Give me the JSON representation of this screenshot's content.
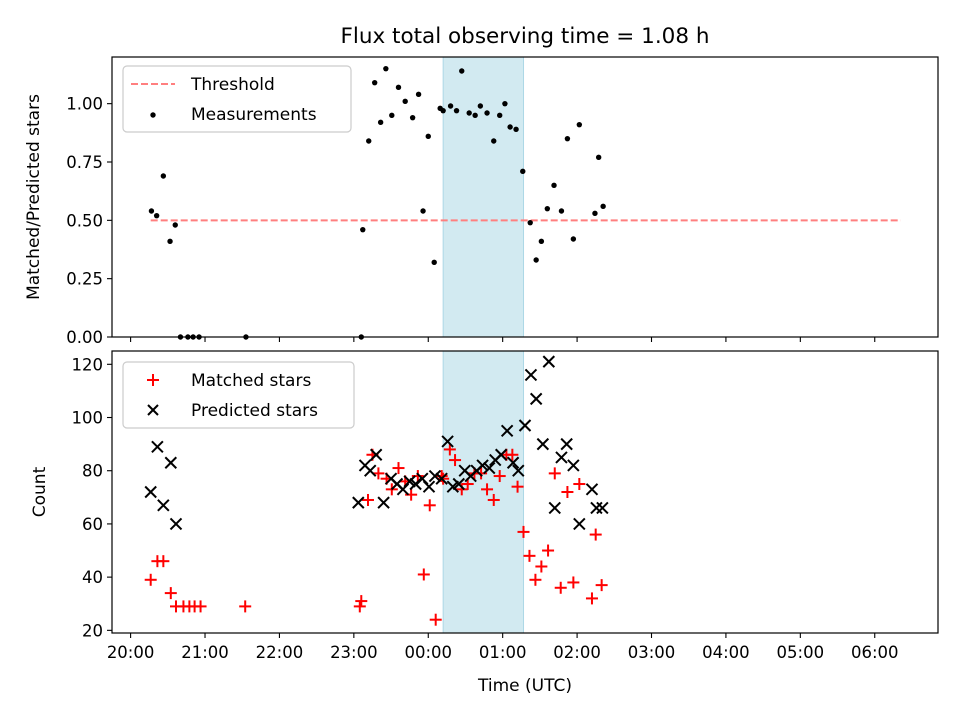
{
  "chart_data": [
    {
      "type": "scatter",
      "title": "Flux total observing time = 1.08 h",
      "xlabel": "",
      "ylabel": "Matched/Predicted stars",
      "ylim": [
        0,
        1.2
      ],
      "yticks": [
        0.0,
        0.25,
        0.5,
        0.75,
        1.0
      ],
      "ytick_labels": [
        "0.00",
        "0.25",
        "0.50",
        "0.75",
        "1.00"
      ],
      "x_unit": "hours after 20:00 UTC (axis spans 20:00 to 06:00)",
      "xlim": [
        -0.25,
        10.85
      ],
      "highlight_span": [
        4.2,
        5.28
      ],
      "highlight_color": "#add8e6",
      "legend_position": "upper left",
      "threshold": {
        "name": "Threshold",
        "value": 0.5,
        "x_range": [
          0.27,
          10.35
        ],
        "color": "#ff7f7f"
      },
      "series": [
        {
          "name": "Measurements",
          "color": "#000000",
          "marker": "dot",
          "x": [
            0.28,
            0.35,
            0.44,
            0.53,
            0.6,
            0.67,
            0.77,
            0.84,
            0.92,
            1.55,
            3.1,
            3.12,
            3.2,
            3.28,
            3.36,
            3.43,
            3.51,
            3.6,
            3.69,
            3.79,
            3.87,
            3.93,
            4.0,
            4.08,
            4.16,
            4.2,
            4.3,
            4.38,
            4.45,
            4.55,
            4.63,
            4.7,
            4.79,
            4.88,
            4.96,
            5.03,
            5.1,
            5.18,
            5.27,
            5.37,
            5.45,
            5.52,
            5.6,
            5.69,
            5.79,
            5.87,
            5.95,
            6.03,
            6.24,
            6.29,
            6.35
          ],
          "y": [
            0.54,
            0.52,
            0.69,
            0.41,
            0.48,
            0.0,
            0.0,
            0.0,
            0.0,
            0.0,
            0.0,
            0.46,
            0.84,
            1.09,
            0.92,
            1.15,
            0.95,
            1.07,
            1.01,
            0.94,
            1.04,
            0.54,
            0.86,
            0.32,
            0.98,
            0.97,
            0.99,
            0.97,
            1.14,
            0.96,
            0.95,
            0.99,
            0.96,
            0.84,
            0.95,
            1.0,
            0.9,
            0.89,
            0.71,
            0.49,
            0.33,
            0.41,
            0.55,
            0.65,
            0.54,
            0.85,
            0.42,
            0.91,
            0.53,
            0.77,
            0.56
          ]
        }
      ]
    },
    {
      "type": "scatter",
      "title": "",
      "xlabel": "Time (UTC)",
      "ylabel": "Count",
      "ylim": [
        19,
        125
      ],
      "yticks": [
        20,
        40,
        60,
        80,
        100,
        120
      ],
      "ytick_labels": [
        "20",
        "40",
        "60",
        "80",
        "100",
        "120"
      ],
      "xticks": [
        0,
        1,
        2,
        3,
        4,
        5,
        6,
        7,
        8,
        9,
        10
      ],
      "xtick_labels": [
        "20:00",
        "21:00",
        "22:00",
        "23:00",
        "00:00",
        "01:00",
        "02:00",
        "03:00",
        "04:00",
        "05:00",
        "06:00"
      ],
      "xlim": [
        -0.25,
        10.85
      ],
      "highlight_span": [
        4.2,
        5.28
      ],
      "highlight_color": "#add8e6",
      "legend_position": "upper left",
      "series": [
        {
          "name": "Matched stars",
          "color": "#ff0000",
          "marker": "plus",
          "x": [
            0.27,
            0.36,
            0.44,
            0.54,
            0.61,
            0.71,
            0.79,
            0.86,
            0.94,
            1.54,
            3.08,
            3.1,
            3.19,
            3.25,
            3.33,
            3.44,
            3.51,
            3.6,
            3.69,
            3.77,
            3.86,
            3.94,
            4.02,
            4.1,
            4.18,
            4.2,
            4.29,
            4.36,
            4.45,
            4.53,
            4.62,
            4.71,
            4.79,
            4.88,
            4.96,
            5.05,
            5.13,
            5.2,
            5.28,
            5.36,
            5.44,
            5.52,
            5.61,
            5.7,
            5.78,
            5.87,
            5.95,
            6.03,
            6.2,
            6.25,
            6.33
          ],
          "y": [
            39,
            46,
            46,
            34,
            29,
            29,
            29,
            29,
            29,
            29,
            29,
            31,
            69,
            86,
            79,
            77,
            73,
            81,
            76,
            71,
            78,
            41,
            67,
            24,
            78,
            77,
            88,
            84,
            73,
            75,
            79,
            79,
            73,
            69,
            78,
            86,
            86,
            74,
            57,
            48,
            39,
            44,
            50,
            79,
            36,
            72,
            38,
            75,
            32,
            56,
            37
          ]
        },
        {
          "name": "Predicted stars",
          "color": "#000000",
          "marker": "x",
          "x": [
            0.27,
            0.36,
            0.44,
            0.54,
            0.61,
            3.06,
            3.15,
            3.22,
            3.3,
            3.4,
            3.5,
            3.58,
            3.66,
            3.75,
            3.83,
            3.92,
            4.01,
            4.09,
            4.18,
            4.26,
            4.33,
            4.41,
            4.49,
            4.57,
            4.65,
            4.73,
            4.82,
            4.9,
            4.98,
            5.06,
            5.14,
            5.21,
            5.3,
            5.38,
            5.45,
            5.54,
            5.62,
            5.7,
            5.79,
            5.86,
            5.95,
            6.03,
            6.2,
            6.26,
            6.34
          ],
          "y": [
            72,
            89,
            67,
            83,
            60,
            68,
            82,
            80,
            86,
            68,
            77,
            75,
            73,
            76,
            75,
            77,
            74,
            78,
            77,
            91,
            74,
            75,
            80,
            78,
            80,
            82,
            81,
            84,
            86,
            95,
            83,
            80,
            97,
            116,
            107,
            90,
            121,
            66,
            85,
            90,
            82,
            60,
            73,
            66,
            66
          ]
        }
      ]
    }
  ]
}
